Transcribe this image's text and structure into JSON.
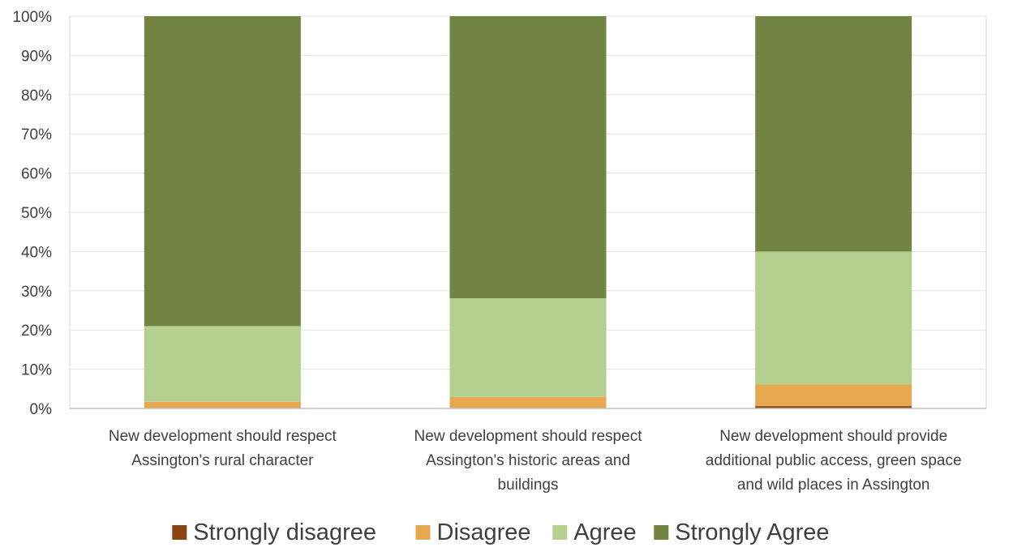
{
  "chart_data": {
    "type": "bar",
    "stacked": true,
    "title": "",
    "xlabel": "",
    "ylabel": "",
    "ylim": [
      0,
      100
    ],
    "y_ticks": [
      "0%",
      "10%",
      "20%",
      "30%",
      "40%",
      "50%",
      "60%",
      "70%",
      "80%",
      "90%",
      "100%"
    ],
    "grid": true,
    "legend_position": "bottom",
    "categories": [
      [
        "New development should respect",
        "Assington's rural character"
      ],
      [
        "New development should respect",
        "Assington's historic areas and",
        "buildings"
      ],
      [
        "New development should provide",
        "additional public access, green space",
        "and wild places in Assington"
      ]
    ],
    "series": [
      {
        "name": "Strongly disagree",
        "color": "#8B4513",
        "values": [
          0,
          0,
          0.6
        ]
      },
      {
        "name": "Disagree",
        "color": "#E8A84F",
        "values": [
          1.7,
          2.9,
          5.5
        ]
      },
      {
        "name": "Agree",
        "color": "#B5CF8E",
        "values": [
          19.3,
          25.2,
          33.9
        ]
      },
      {
        "name": "Strongly Agree",
        "color": "#738342",
        "values": [
          79,
          71.9,
          60
        ]
      }
    ]
  }
}
